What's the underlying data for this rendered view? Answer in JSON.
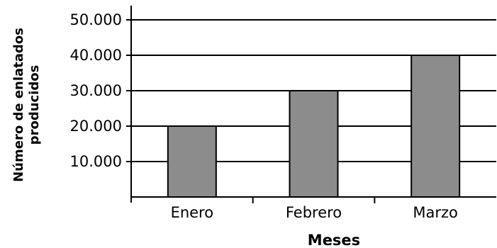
{
  "chart_data": {
    "type": "bar",
    "categories": [
      "Enero",
      "Febrero",
      "Marzo"
    ],
    "values": [
      20000,
      30000,
      40000
    ],
    "title": "",
    "xlabel": "Meses",
    "ylabel_lines": [
      "Número de enlatados",
      "producidos"
    ],
    "ylim": [
      0,
      50000
    ],
    "yticks": [
      {
        "value": 10000,
        "label": "10.000"
      },
      {
        "value": 20000,
        "label": "20.000"
      },
      {
        "value": 30000,
        "label": "30.000"
      },
      {
        "value": 40000,
        "label": "40.000"
      },
      {
        "value": 50000,
        "label": "50.000"
      }
    ],
    "grid": true,
    "bar_color": "#8c8c8c",
    "edge_color": "#000000"
  }
}
